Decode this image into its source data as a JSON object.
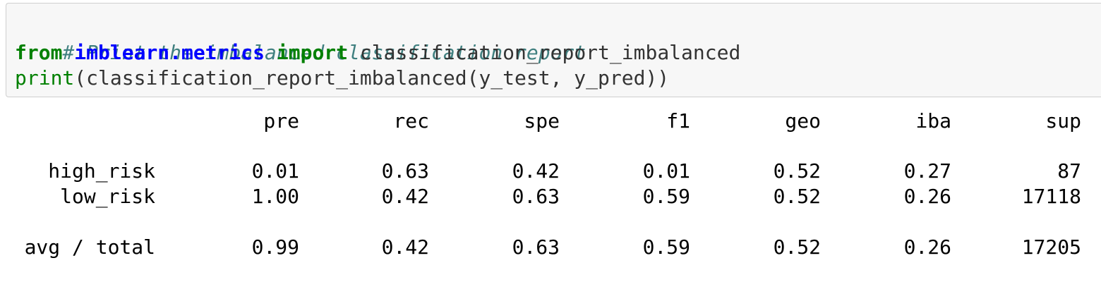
{
  "code": {
    "line1": {
      "comment": "# Print the imbalanced classification report"
    },
    "line2": {
      "from_kw": "from",
      "module": "imblearn.metrics",
      "import_kw": "import",
      "name": "classification_report_imbalanced"
    },
    "line3": {
      "builtin": "print",
      "rest": "(classification_report_imbalanced(y_test, y_pred))"
    }
  },
  "report": {
    "columns": [
      "pre",
      "rec",
      "spe",
      "f1",
      "geo",
      "iba",
      "sup"
    ],
    "rows": [
      {
        "label": "high_risk",
        "values": [
          "0.01",
          "0.63",
          "0.42",
          "0.01",
          "0.52",
          "0.27",
          "87"
        ]
      },
      {
        "label": "low_risk",
        "values": [
          "1.00",
          "0.42",
          "0.63",
          "0.59",
          "0.52",
          "0.26",
          "17118"
        ]
      }
    ],
    "total": {
      "label": "avg / total",
      "values": [
        "0.99",
        "0.42",
        "0.63",
        "0.59",
        "0.52",
        "0.26",
        "17205"
      ]
    }
  }
}
